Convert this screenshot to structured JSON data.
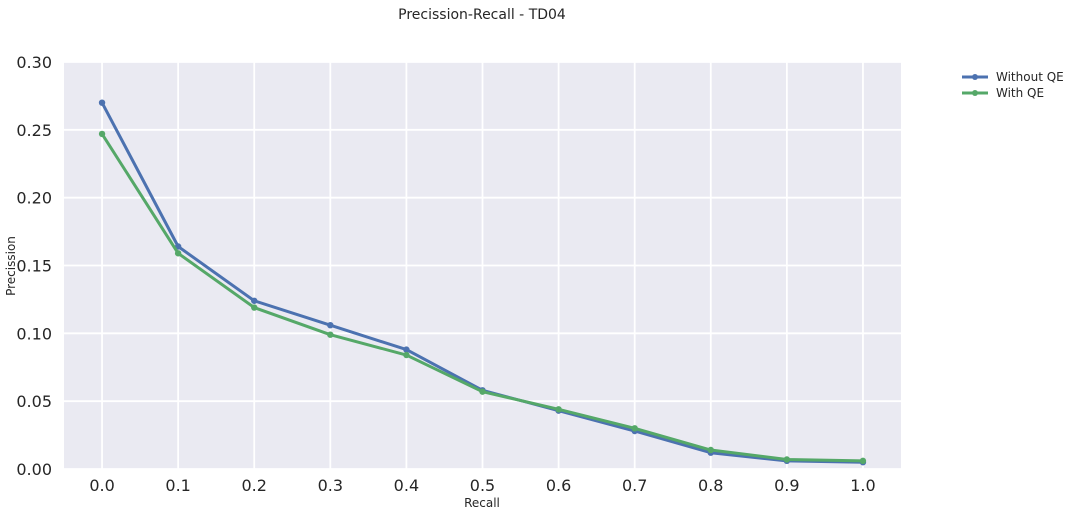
{
  "chart_data": {
    "type": "line",
    "title": "Precission-Recall - TD04",
    "xlabel": "Recall",
    "ylabel": "Precission",
    "x": [
      0.0,
      0.1,
      0.2,
      0.3,
      0.4,
      0.5,
      0.6,
      0.7,
      0.8,
      0.9,
      1.0
    ],
    "xlim": [
      -0.05,
      1.05
    ],
    "ylim": [
      0.0,
      0.3
    ],
    "xticks": [
      "0.0",
      "0.1",
      "0.2",
      "0.3",
      "0.4",
      "0.5",
      "0.6",
      "0.7",
      "0.8",
      "0.9",
      "1.0"
    ],
    "yticks": [
      "0.00",
      "0.05",
      "0.10",
      "0.15",
      "0.20",
      "0.25",
      "0.30"
    ],
    "grid": true,
    "legend_position": "outside-top-right",
    "background_color": "#eaeaf2",
    "grid_color": "#ffffff",
    "series": [
      {
        "name": "Without QE",
        "color": "#4c72b0",
        "values": [
          0.27,
          0.164,
          0.124,
          0.106,
          0.088,
          0.058,
          0.043,
          0.028,
          0.012,
          0.006,
          0.005
        ]
      },
      {
        "name": "With QE",
        "color": "#55a868",
        "values": [
          0.247,
          0.159,
          0.119,
          0.099,
          0.084,
          0.057,
          0.044,
          0.03,
          0.014,
          0.007,
          0.006
        ]
      }
    ]
  }
}
